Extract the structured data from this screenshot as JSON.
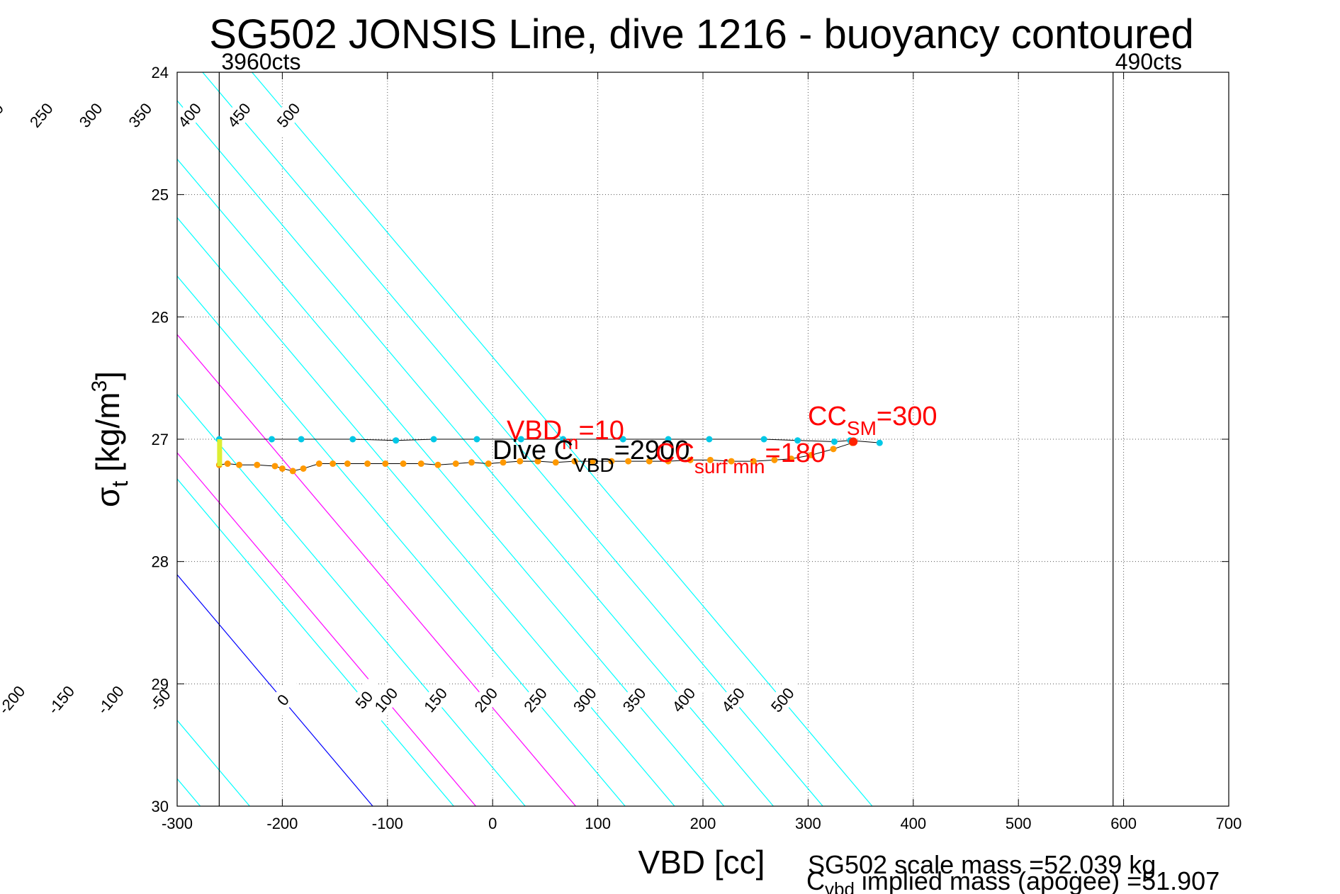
{
  "chart_data": {
    "type": "scatter",
    "title": "SG502 JONSIS Line, dive 1216 - buoyancy contoured",
    "xlabel": "VBD [cc]",
    "ylabel": "σ_t [kg/m³]",
    "ylabel_parts": {
      "symbol": "σ",
      "sub": "t",
      "unit_pre": " [kg/m",
      "unit_sup": "3",
      "unit_post": "]"
    },
    "xlim": [
      -300,
      700
    ],
    "ylim": [
      24,
      30
    ],
    "y_reversed": true,
    "grid": true,
    "x_ticks": [
      -300,
      -200,
      -100,
      0,
      100,
      200,
      300,
      400,
      500,
      600,
      700
    ],
    "y_ticks": [
      24,
      25,
      26,
      27,
      28,
      29,
      30
    ],
    "x_tick_labels": [
      "-300",
      "-200",
      "-100",
      "0",
      "100",
      "200",
      "300",
      "400",
      "500",
      "600",
      "700"
    ],
    "y_tick_labels": [
      "24",
      "25",
      "26",
      "27",
      "28",
      "29",
      "30"
    ],
    "vbd_limits": [
      {
        "x": -260,
        "label": "3960cts"
      },
      {
        "x": 590,
        "label": "490cts"
      }
    ],
    "buoyancy_contours": {
      "levels": [
        -400,
        -350,
        -300,
        -250,
        -200,
        -150,
        -100,
        -50,
        0,
        50,
        100,
        150,
        200,
        250,
        300,
        350,
        400,
        450,
        500
      ],
      "top_labels": [
        "-200",
        "-150",
        "-100",
        "-50",
        "0",
        "50",
        "100",
        "150",
        "200",
        "250",
        "300",
        "350",
        "400",
        "450",
        "500"
      ],
      "bottom_labels": [
        "-200",
        "-150",
        "-100",
        "-50",
        "0",
        "50",
        "100",
        "150",
        "200",
        "250",
        "300",
        "350",
        "400",
        "450",
        "500"
      ],
      "left_labels": [
        "-400",
        "-350",
        "-300",
        "-250"
      ],
      "x_at_sigma_30": [
        -560,
        -513,
        -466,
        -419,
        -372,
        -325,
        -278,
        -231,
        -114,
        -37,
        -16,
        31,
        79,
        126,
        173,
        220,
        267,
        314,
        361
      ],
      "x_per_sigma": 98.3,
      "colors": {
        "default": "#00ffff",
        "zero": "#0000ff",
        "highlight": "#ff00ff"
      },
      "highlight_levels": [
        100,
        200
      ]
    },
    "series": [
      {
        "name": "",
        "color": "#00c8e6",
        "x": [
          -260,
          -210,
          -182,
          -133,
          -92,
          -56,
          -15,
          27,
          67,
          124,
          167,
          206,
          258,
          290,
          325,
          340,
          368
        ],
        "y": [
          27.0,
          27.0,
          27.0,
          27.0,
          27.01,
          27.0,
          27.0,
          27.0,
          27.0,
          27.0,
          27.0,
          27.0,
          27.0,
          27.01,
          27.02,
          27.01,
          27.03
        ]
      },
      {
        "name": "",
        "color": "#ff9900",
        "x": [
          -260,
          -252,
          -241,
          -224,
          -207,
          -200,
          -190,
          -180,
          -165,
          -152,
          -138,
          -119,
          -102,
          -85,
          -68,
          -52,
          -35,
          -20,
          -4,
          10,
          26,
          43,
          60,
          78,
          95,
          113,
          129,
          149,
          167,
          188,
          207,
          227,
          248,
          268,
          284,
          303,
          324,
          342
        ],
        "y": [
          27.21,
          27.2,
          27.21,
          27.21,
          27.22,
          27.24,
          27.26,
          27.24,
          27.2,
          27.2,
          27.2,
          27.2,
          27.2,
          27.2,
          27.2,
          27.21,
          27.2,
          27.19,
          27.2,
          27.19,
          27.18,
          27.18,
          27.19,
          27.18,
          27.18,
          27.18,
          27.18,
          27.18,
          27.18,
          27.17,
          27.17,
          27.18,
          27.18,
          27.17,
          27.16,
          27.13,
          27.08,
          27.03
        ]
      }
    ],
    "annotations": {
      "vbd_cm": {
        "main": "VBD",
        "sub": "m",
        "value": "=10"
      },
      "dive_c_vbd": {
        "main": "Dive C",
        "sub": "VBD",
        "value": "=2900"
      },
      "cc_sm": {
        "main": "CC",
        "sub": "SM",
        "value": "=300"
      },
      "cc_surf_min": {
        "main": "CC",
        "sub": "surf min",
        "value": "=180"
      },
      "scale_mass": "SG502 scale mass =52.039 kg",
      "implied_mass": {
        "main": "C",
        "sub": "vbd",
        "value": " implied mass (apogee) =51.907"
      }
    }
  }
}
